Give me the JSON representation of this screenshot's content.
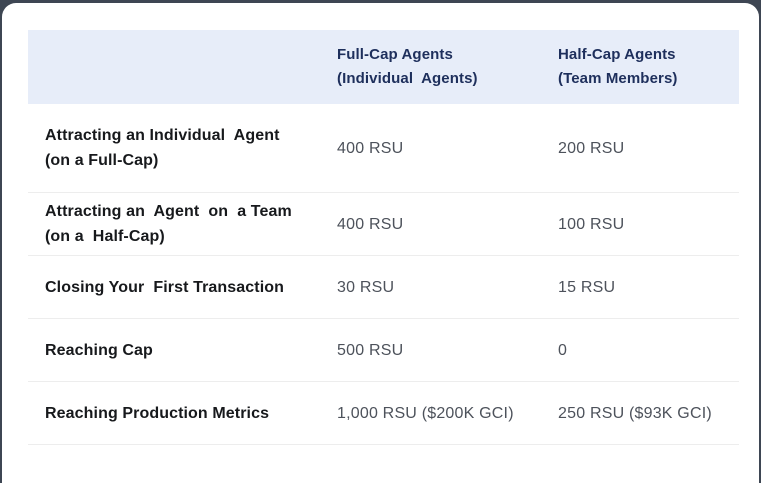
{
  "canvas": {
    "background": "#3e4653",
    "card_background": "#ffffff"
  },
  "table": {
    "header": {
      "background": "#e7edf9",
      "text_color": "#1e2f5c",
      "col_full_cap": "Full-Cap Agents\n(Individual  Agents)",
      "col_half_cap": "Half-Cap Agents\n(Team Members)"
    },
    "rows": [
      {
        "label": "Attracting an Individual  Agent\n(on a Full-Cap)",
        "full_cap": "400 RSU",
        "half_cap": "200 RSU"
      },
      {
        "label": "Attracting an  Agent  on  a Team\n(on a  Half-Cap)",
        "full_cap": "400 RSU",
        "half_cap": "100 RSU"
      },
      {
        "label": "Closing Your  First Transaction",
        "full_cap": "30 RSU",
        "half_cap": "15 RSU"
      },
      {
        "label": "Reaching Cap",
        "full_cap": "500 RSU",
        "half_cap": "0"
      },
      {
        "label": "Reaching Production Metrics",
        "full_cap": "1,000 RSU ($200K GCI)",
        "half_cap": "250 RSU ($93K GCI)"
      }
    ]
  }
}
